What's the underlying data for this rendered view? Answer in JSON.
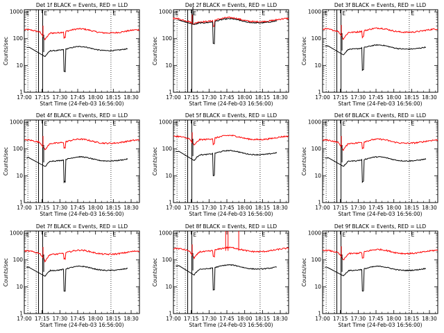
{
  "chart_data": {
    "type": "line",
    "panels": [
      {
        "title": "Det 1f BLACK = Events, RED = LLD",
        "red_base": 160,
        "black_base": 35,
        "red_dip": 0.55,
        "black_dip": 0.6,
        "variant": "normal"
      },
      {
        "title": "Det 2f BLACK = Events, RED = LLD",
        "red_base": 420,
        "black_base": 380,
        "red_dip": 0.85,
        "black_dip": 0.85,
        "variant": "overlap"
      },
      {
        "title": "Det 3f BLACK = Events, RED = LLD",
        "red_base": 170,
        "black_base": 40,
        "red_dip": 0.55,
        "black_dip": 0.6,
        "variant": "normal"
      },
      {
        "title": "Det 4f BLACK = Events, RED = LLD",
        "red_base": 160,
        "black_base": 35,
        "red_dip": 0.55,
        "black_dip": 0.6,
        "variant": "normal"
      },
      {
        "title": "Det 5f BLACK = Events, RED = LLD",
        "red_base": 220,
        "black_base": 60,
        "red_dip": 0.6,
        "black_dip": 0.6,
        "variant": "normal"
      },
      {
        "title": "Det 6f BLACK = Events, RED = LLD",
        "red_base": 160,
        "black_base": 35,
        "red_dip": 0.55,
        "black_dip": 0.6,
        "variant": "normal"
      },
      {
        "title": "Det 7f BLACK = Events, RED = LLD",
        "red_base": 160,
        "black_base": 40,
        "red_dip": 0.55,
        "black_dip": 0.6,
        "variant": "normal"
      },
      {
        "title": "Det 8f BLACK = Events, RED = LLD",
        "red_base": 200,
        "black_base": 45,
        "red_dip": 0.55,
        "black_dip": 0.6,
        "variant": "spikes"
      },
      {
        "title": "Det 9f BLACK = Events, RED = LLD",
        "red_base": 170,
        "black_base": 40,
        "red_dip": 0.55,
        "black_dip": 0.6,
        "variant": "normal"
      }
    ],
    "series": [
      {
        "name": "Events",
        "color": "#000000"
      },
      {
        "name": "LLD",
        "color": "#ff0000"
      }
    ],
    "xlabel": "Start Time (24-Feb-03 16:56:00)",
    "ylabel": "Counts/sec",
    "x_ticks": [
      "17:00",
      "17:15",
      "17:30",
      "17:45",
      "18:00",
      "18:15",
      "18:30"
    ],
    "x_tick_minutes": [
      0,
      15,
      30,
      45,
      60,
      75,
      90
    ],
    "xlim_minutes": [
      0,
      97
    ],
    "y_ticks": [
      "1",
      "10",
      "100",
      "1000"
    ],
    "y_tick_values": [
      1,
      10,
      100,
      1000
    ],
    "ylim": [
      1,
      1200
    ],
    "y_scale": "log",
    "dotted_markers_minutes": [
      3,
      10,
      73
    ],
    "solid_band_minutes": [
      12,
      15.5
    ],
    "gap_minutes": [
      4.5,
      17.5
    ],
    "segment_markers": [
      {
        "label": "E",
        "minute": 1
      },
      {
        "label": "E",
        "minute": 16
      },
      {
        "label": "E",
        "minute": 74
      }
    ]
  }
}
